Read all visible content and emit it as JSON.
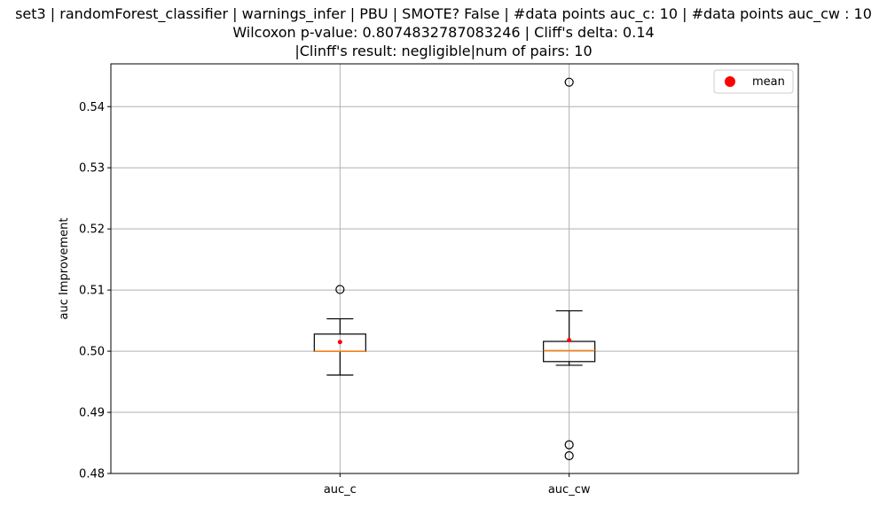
{
  "chart_data": {
    "type": "boxplot",
    "title_lines": [
      "set3 | randomForest_classifier | warnings_infer | PBU | SMOTE? False | #data points auc_c: 10 | #data points auc_cw : 10",
      "Wilcoxon p-value: 0.8074832787083246 | Cliff's delta: 0.14",
      "|Clinff's result: negligible|num of pairs: 10"
    ],
    "ylabel": "auc Improvement",
    "xlabel": "",
    "ylim": [
      0.48,
      0.547
    ],
    "yticks": [
      0.48,
      0.49,
      0.5,
      0.51,
      0.52,
      0.53,
      0.54
    ],
    "ytick_labels": [
      "0.48",
      "0.49",
      "0.50",
      "0.51",
      "0.52",
      "0.53",
      "0.54"
    ],
    "grid": true,
    "legend": {
      "placement": "top-right",
      "entries": [
        {
          "label": "mean",
          "marker": "red-circle"
        }
      ]
    },
    "categories": [
      "auc_c",
      "auc_cw"
    ],
    "boxes": [
      {
        "category": "auc_c",
        "whisker_low": 0.4961,
        "q1": 0.5,
        "median": 0.5,
        "q3": 0.5028,
        "whisker_high": 0.5053,
        "mean": 0.5015,
        "outliers": [
          0.5101
        ]
      },
      {
        "category": "auc_cw",
        "whisker_low": 0.4977,
        "q1": 0.4983,
        "median": 0.5001,
        "q3": 0.5016,
        "whisker_high": 0.5066,
        "mean": 0.5018,
        "outliers": [
          0.544,
          0.4847,
          0.4829
        ]
      }
    ],
    "colors": {
      "box": "#000000",
      "median": "#ff7f0e",
      "mean": "#ff0000",
      "grid": "#b0b0b0"
    }
  }
}
